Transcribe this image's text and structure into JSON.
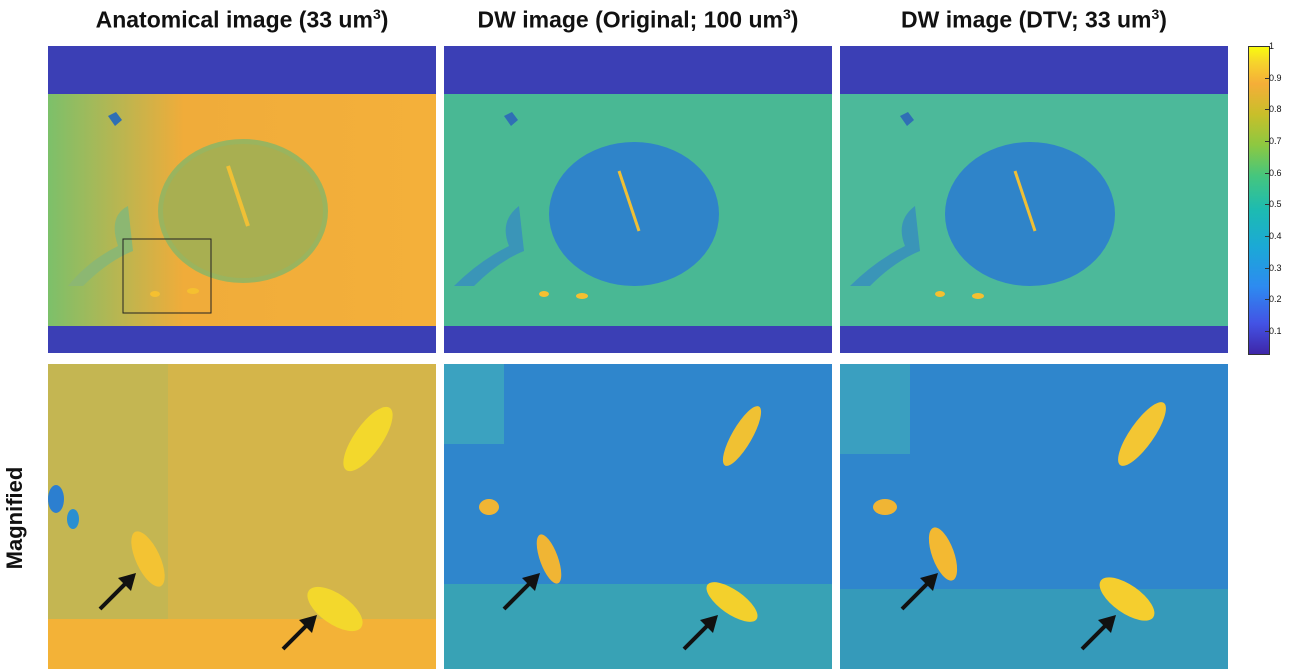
{
  "titles": {
    "anatomical": {
      "main": "Anatomical image (33 um",
      "sup": "3",
      "end": ")"
    },
    "dw_original": {
      "main": "DW image (Original; 100 um",
      "sup": "3",
      "end": ")"
    },
    "dw_dtv": {
      "main": "DW image (DTV; 33 um",
      "sup": "3",
      "end": ")"
    }
  },
  "row_label": "Magnified",
  "colorbar": {
    "ticks": [
      "1",
      "0.9",
      "0.8",
      "0.7",
      "0.6",
      "0.5",
      "0.4",
      "0.3",
      "0.2",
      "0.1"
    ],
    "colormap": "parula"
  },
  "colors": {
    "background_blue": "#3b3fb5",
    "anatomical_bg": "#f0ac3a",
    "dw_bg": "#49b894",
    "dw_tissue": "#2f84c9",
    "bright_yellow": "#f7dc2a"
  }
}
